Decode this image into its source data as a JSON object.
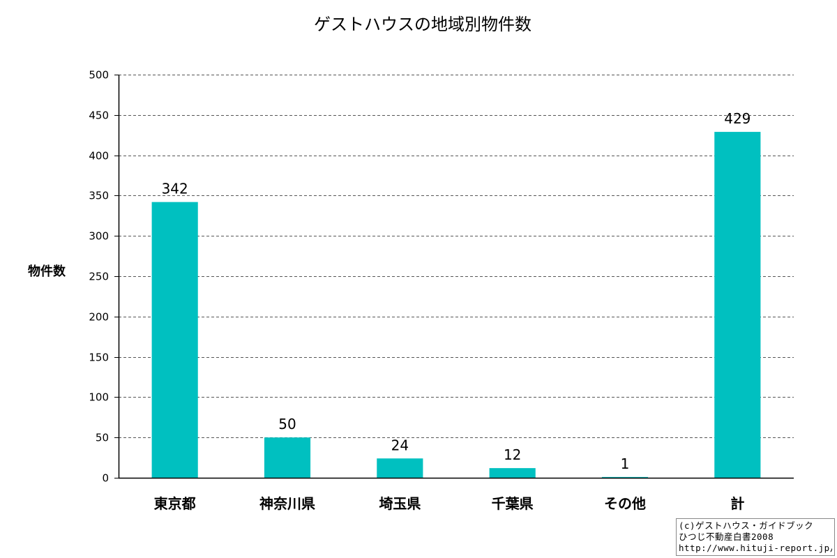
{
  "chart_data": {
    "type": "bar",
    "title": "ゲストハウスの地域別物件数",
    "xlabel": "",
    "ylabel": "物件数",
    "categories": [
      "東京都",
      "神奈川県",
      "埼玉県",
      "千葉県",
      "その他",
      "計"
    ],
    "values": [
      342,
      50,
      24,
      12,
      1,
      429
    ],
    "data_labels": [
      "342",
      "50",
      "24",
      "12",
      "1",
      "429"
    ],
    "ylim": [
      0,
      500
    ],
    "yticks": [
      0,
      50,
      100,
      150,
      200,
      250,
      300,
      350,
      400,
      450,
      500
    ],
    "ytick_labels": [
      "0",
      "50",
      "100",
      "150",
      "200",
      "250",
      "300",
      "350",
      "400",
      "450",
      "500"
    ],
    "grid": "horizontal-dashed",
    "legend": "none",
    "bar_color": "#00c0c0"
  },
  "copyright": {
    "line1": "(c)ゲストハウス・ガイドブック",
    "line2": "ひつじ不動産白書2008",
    "line3": "http://www.hituji-report.jp/"
  }
}
